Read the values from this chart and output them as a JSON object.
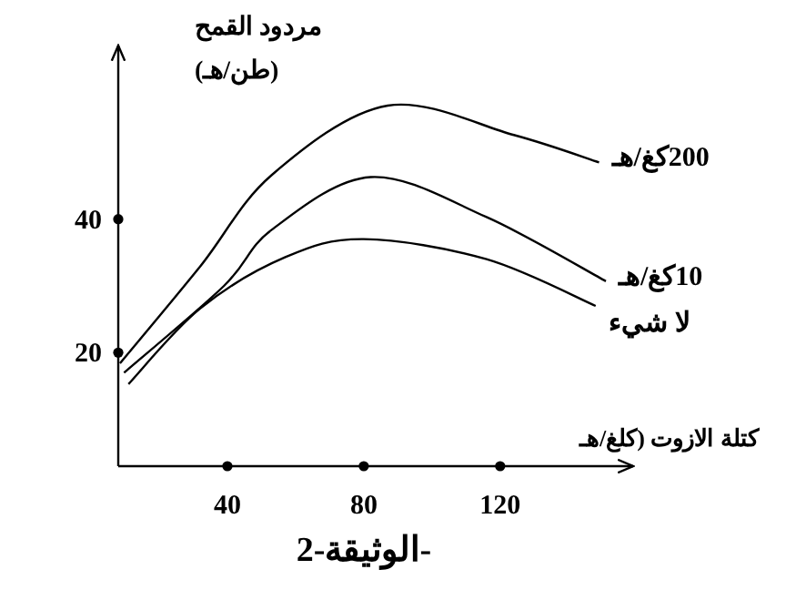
{
  "chart_data": {
    "type": "line",
    "title": "الوثيقة-2-",
    "xlabel": "كتلة الازوت (كلغ/هـ",
    "ylabel": "مردود القمح\n(طن/هـ)",
    "xlim": [
      8,
      159
    ],
    "ylim": [
      3,
      66
    ],
    "xticks": [
      40,
      80,
      120
    ],
    "yticks": [
      20,
      40
    ],
    "grid": false,
    "marker": "none",
    "line_style": "solid",
    "series": [
      {
        "name": "200كغ/هـ",
        "color": "#000000",
        "x": [
          8.5,
          32,
          53,
          87,
          124,
          149
        ],
        "values": [
          18.4,
          32.9,
          46.6,
          57,
          52.6,
          48.5
        ]
      },
      {
        "name": "10كغ/هـ",
        "color": "#000000",
        "x": [
          9.7,
          39,
          53,
          82,
          116,
          151
        ],
        "values": [
          17,
          30,
          38.4,
          46.3,
          40.3,
          30.7
        ]
      },
      {
        "name": "لا شيء",
        "color": "#000000",
        "x": [
          11,
          32,
          57,
          80,
          116,
          148
        ],
        "values": [
          15.3,
          26.6,
          34.3,
          37,
          34,
          27
        ]
      }
    ]
  }
}
